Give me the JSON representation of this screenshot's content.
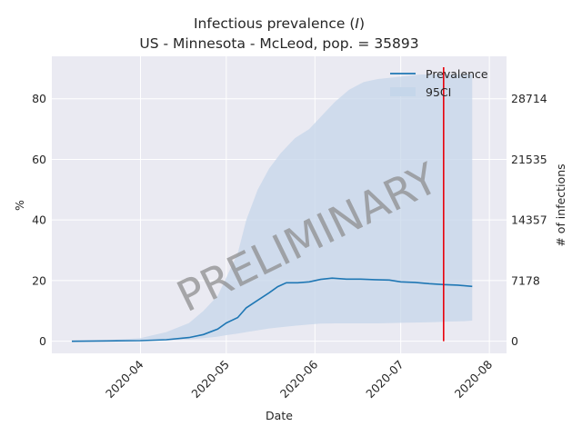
{
  "chart_data": {
    "type": "line",
    "title_line1": "Infectious prevalence (",
    "title_italic": "I",
    "title_line1_end": ")",
    "title_line2": "US - Minnesota - McLeod, pop. = 35893",
    "xlabel": "Date",
    "ylabel": "%",
    "ylabel_right": "# of infections",
    "watermark": "PRELIMINARY",
    "grid": true,
    "legend_position": "top-right",
    "x_ticks": [
      "2020-04",
      "2020-05",
      "2020-06",
      "2020-07",
      "2020-08"
    ],
    "y_ticks": [
      "0",
      "20",
      "40",
      "60",
      "80"
    ],
    "y_ticks_right": [
      "0",
      "7178",
      "14357",
      "21535",
      "28714"
    ],
    "ylim": [
      -4,
      94
    ],
    "xlim": [
      "2020-03-01",
      "2020-08-07"
    ],
    "vertical_marker_date": "2020-07-16",
    "colors": {
      "line": "#1f77b4",
      "band": "#c5d6ea",
      "marker": "#e8000b",
      "background": "#eaeaf2"
    },
    "series": [
      {
        "name": "Prevalence",
        "x": [
          "2020-03-08",
          "2020-03-20",
          "2020-04-01",
          "2020-04-10",
          "2020-04-18",
          "2020-04-23",
          "2020-04-28",
          "2020-05-01",
          "2020-05-05",
          "2020-05-08",
          "2020-05-12",
          "2020-05-16",
          "2020-05-19",
          "2020-05-22",
          "2020-05-26",
          "2020-05-30",
          "2020-06-03",
          "2020-06-07",
          "2020-06-12",
          "2020-06-17",
          "2020-06-22",
          "2020-06-27",
          "2020-07-01",
          "2020-07-06",
          "2020-07-11",
          "2020-07-16",
          "2020-07-21",
          "2020-07-26"
        ],
        "values": [
          0.0,
          0.1,
          0.2,
          0.5,
          1.2,
          2.2,
          4.0,
          6.0,
          7.8,
          11.0,
          13.5,
          16.0,
          18.0,
          19.3,
          19.3,
          19.6,
          20.4,
          20.8,
          20.5,
          20.5,
          20.3,
          20.2,
          19.6,
          19.4,
          19.0,
          18.7,
          18.5,
          18.1
        ]
      },
      {
        "name": "95CI",
        "x": [
          "2020-03-08",
          "2020-03-20",
          "2020-04-01",
          "2020-04-10",
          "2020-04-18",
          "2020-04-23",
          "2020-04-28",
          "2020-05-01",
          "2020-05-05",
          "2020-05-08",
          "2020-05-12",
          "2020-05-16",
          "2020-05-20",
          "2020-05-25",
          "2020-05-30",
          "2020-06-03",
          "2020-06-08",
          "2020-06-13",
          "2020-06-18",
          "2020-06-23",
          "2020-06-28",
          "2020-07-03",
          "2020-07-08",
          "2020-07-13",
          "2020-07-18",
          "2020-07-23",
          "2020-07-26"
        ],
        "lower": [
          0.0,
          0.05,
          0.1,
          0.3,
          0.6,
          1.0,
          1.5,
          2.0,
          2.5,
          3.0,
          3.6,
          4.2,
          4.6,
          5.1,
          5.5,
          5.8,
          5.9,
          5.9,
          5.9,
          5.9,
          6.0,
          6.1,
          6.2,
          6.3,
          6.5,
          6.6,
          6.8
        ],
        "upper": [
          0.0,
          0.3,
          1.0,
          3.0,
          6.0,
          10.0,
          15.0,
          21.0,
          29.0,
          40.0,
          50.0,
          57.0,
          62.0,
          67.0,
          70.0,
          74.0,
          79.0,
          83.0,
          85.5,
          86.5,
          87.0,
          87.5,
          88.0,
          88.0,
          88.0,
          88.0,
          88.0
        ]
      }
    ]
  }
}
